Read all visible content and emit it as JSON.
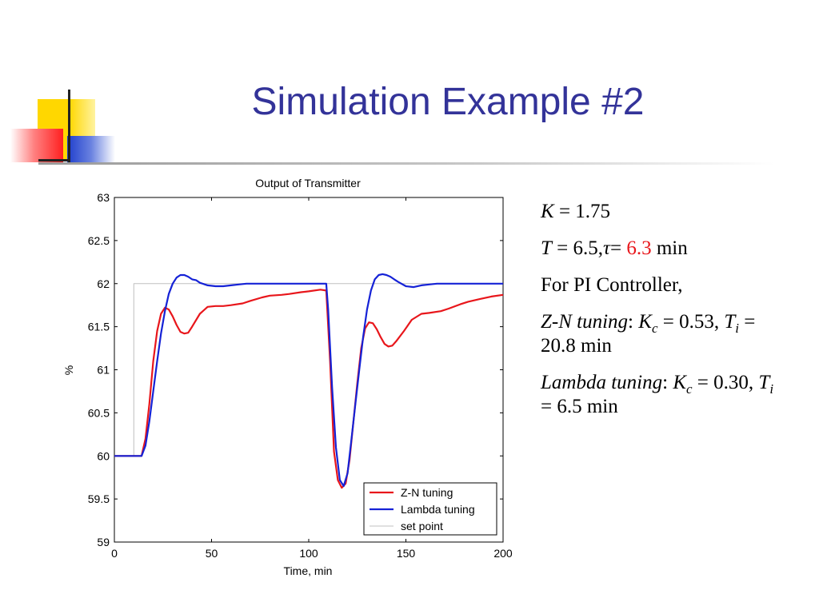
{
  "slide": {
    "title": "Simulation Example #2",
    "colors": {
      "title": "#333399",
      "deco_yellow": "#ffd700",
      "deco_red": "#ff2a2a",
      "deco_blue": "#1f3fcc"
    }
  },
  "params": {
    "k_sym": "K",
    "k_val": " = 1.75",
    "t_sym": "T",
    "t_mid": " = 6.5,",
    "tau_sym": "τ",
    "tau_eq": "= ",
    "tau_val": "6.3",
    "tau_unit": " min",
    "pi_line": "For PI Controller,",
    "zn_label": "Z-N tuning",
    "zn_colon": ": ",
    "zn_kc": "K",
    "zn_kc_sub": "c",
    "zn_eq1": " = 0.53, ",
    "zn_ti": "T",
    "zn_ti_sub": "i",
    "zn_eq2": " = 20.8 min",
    "lam_label": "Lambda tuning",
    "lam_colon": ": ",
    "lam_kc": "K",
    "lam_kc_sub": "c",
    "lam_eq1": " = 0.30, ",
    "lam_ti": "T",
    "lam_ti_sub": "i",
    "lam_eq2": " = 6.5 min",
    "highlight_color": "#e8161b"
  },
  "chart_data": {
    "type": "line",
    "title": "Output of Transmitter",
    "xlabel": "Time, min",
    "ylabel": "%",
    "xlim": [
      0,
      200
    ],
    "ylim": [
      59,
      63
    ],
    "xticks": [
      0,
      50,
      100,
      150,
      200
    ],
    "xtick_labels": [
      "0",
      "50",
      "100",
      "150",
      "200"
    ],
    "yticks": [
      59,
      59.5,
      60,
      60.5,
      61,
      61.5,
      62,
      62.5,
      63
    ],
    "ytick_labels": [
      "59",
      "59.5",
      "60",
      "60.5",
      "61",
      "61.5",
      "62",
      "62.5",
      "63"
    ],
    "legend_position": "bottom-right",
    "series": [
      {
        "name": "Z-N tuning",
        "color": "#e8161b",
        "x": [
          0,
          14,
          16,
          18,
          20,
          22,
          24,
          26,
          28,
          30,
          32,
          34,
          36,
          38,
          40,
          44,
          48,
          52,
          56,
          60,
          66,
          70,
          76,
          80,
          86,
          90,
          96,
          100,
          106,
          109,
          111,
          113,
          115,
          117,
          119,
          121,
          123,
          125,
          127,
          129,
          131,
          133,
          135,
          137,
          139,
          141,
          143,
          145,
          149,
          153,
          158,
          162,
          168,
          172,
          178,
          182,
          188,
          194,
          200
        ],
        "y": [
          60,
          60,
          60.2,
          60.6,
          61.1,
          61.45,
          61.65,
          61.72,
          61.7,
          61.62,
          61.52,
          61.44,
          61.42,
          61.43,
          61.5,
          61.65,
          61.73,
          61.74,
          61.74,
          61.75,
          61.77,
          61.8,
          61.84,
          61.86,
          61.87,
          61.88,
          61.9,
          61.91,
          61.93,
          61.92,
          61.1,
          60.05,
          59.72,
          59.63,
          59.68,
          59.95,
          60.4,
          60.85,
          61.25,
          61.48,
          61.55,
          61.54,
          61.47,
          61.38,
          61.3,
          61.27,
          61.28,
          61.33,
          61.45,
          61.58,
          61.65,
          61.66,
          61.68,
          61.71,
          61.76,
          61.79,
          61.82,
          61.85,
          61.87
        ]
      },
      {
        "name": "Lambda tuning",
        "color": "#1522d6",
        "x": [
          0,
          14,
          16,
          18,
          20,
          22,
          24,
          26,
          28,
          30,
          32,
          34,
          36,
          38,
          40,
          42,
          44,
          48,
          52,
          56,
          60,
          64,
          68,
          72,
          80,
          90,
          100,
          109,
          110,
          112,
          114,
          116,
          118,
          120,
          122,
          124,
          126,
          128,
          130,
          132,
          134,
          136,
          138,
          140,
          142,
          144,
          146,
          150,
          154,
          158,
          162,
          166,
          170,
          180,
          190,
          200
        ],
        "y": [
          60,
          60,
          60.12,
          60.4,
          60.75,
          61.1,
          61.42,
          61.68,
          61.88,
          62.0,
          62.07,
          62.1,
          62.1,
          62.08,
          62.05,
          62.04,
          62.01,
          61.98,
          61.97,
          61.97,
          61.98,
          61.99,
          62.0,
          62.0,
          62.0,
          62.0,
          62.0,
          62.0,
          61.7,
          60.8,
          60.1,
          59.72,
          59.65,
          59.8,
          60.2,
          60.6,
          61.0,
          61.38,
          61.7,
          61.92,
          62.05,
          62.1,
          62.11,
          62.1,
          62.08,
          62.05,
          62.02,
          61.97,
          61.96,
          61.98,
          61.99,
          62.0,
          62.0,
          62.0,
          62.0,
          62.0
        ]
      },
      {
        "name": "set point",
        "color": "#c0c0c0",
        "x": [
          0,
          10,
          10,
          200
        ],
        "y": [
          60,
          60,
          62,
          62
        ]
      }
    ]
  }
}
